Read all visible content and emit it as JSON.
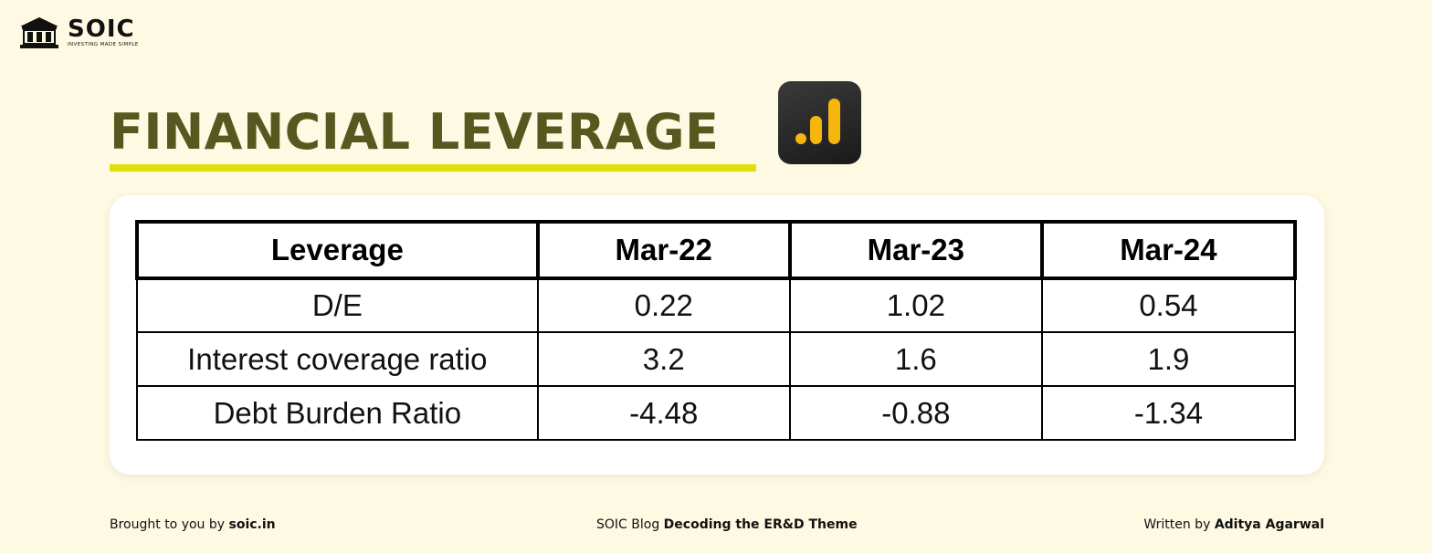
{
  "brand": {
    "name": "SOIC",
    "tagline": "INVESTING MADE SIMPLE",
    "icon": "bank-building-icon"
  },
  "title": "FINANCIAL LEVERAGE",
  "title_icon": "bar-chart-icon",
  "colors": {
    "background": "#fef9e3",
    "title": "#56591f",
    "underline": "#e2de0c",
    "chart_icon_bars": "#f6b60e"
  },
  "table": {
    "headers": [
      "Leverage",
      "Mar-22",
      "Mar-23",
      "Mar-24"
    ],
    "rows": [
      [
        "D/E",
        "0.22",
        "1.02",
        "0.54"
      ],
      [
        "Interest coverage ratio",
        "3.2",
        "1.6",
        "1.9"
      ],
      [
        "Debt Burden Ratio",
        "-4.48",
        "-0.88",
        "-1.34"
      ]
    ]
  },
  "footer": {
    "left_prefix": "Brought to you by",
    "left_bold": "soic.in",
    "center_prefix": "SOIC Blog",
    "center_bold": "Decoding the ER&D Theme",
    "right_prefix": "Written by",
    "right_bold": "Aditya Agarwal"
  }
}
